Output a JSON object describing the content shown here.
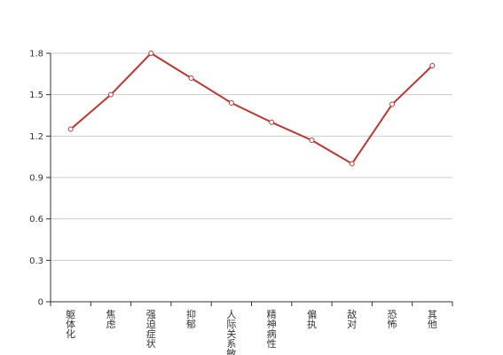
{
  "chart_data": {
    "type": "line",
    "title": "",
    "xlabel": "",
    "ylabel": "",
    "categories": [
      "躯体化",
      "焦虑",
      "强迫症状",
      "抑郁",
      "人际关系敏感",
      "精神病性",
      "偏执",
      "敌对",
      "恐怖",
      "其他"
    ],
    "series": [
      {
        "values": [
          1.25,
          1.5,
          1.8,
          1.62,
          1.44,
          1.3,
          1.17,
          1.0,
          1.43,
          1.71
        ]
      }
    ],
    "ylim": [
      0,
      1.8
    ],
    "yticks": [
      "0",
      "0.3",
      "0.6",
      "0.9",
      "1.2",
      "1.5",
      "1.8"
    ],
    "grid": true,
    "legend": "none",
    "colors": {
      "line": "#c23531",
      "grid": "#cccccc",
      "axis": "#333333",
      "point_fill": "#ffffff"
    }
  }
}
